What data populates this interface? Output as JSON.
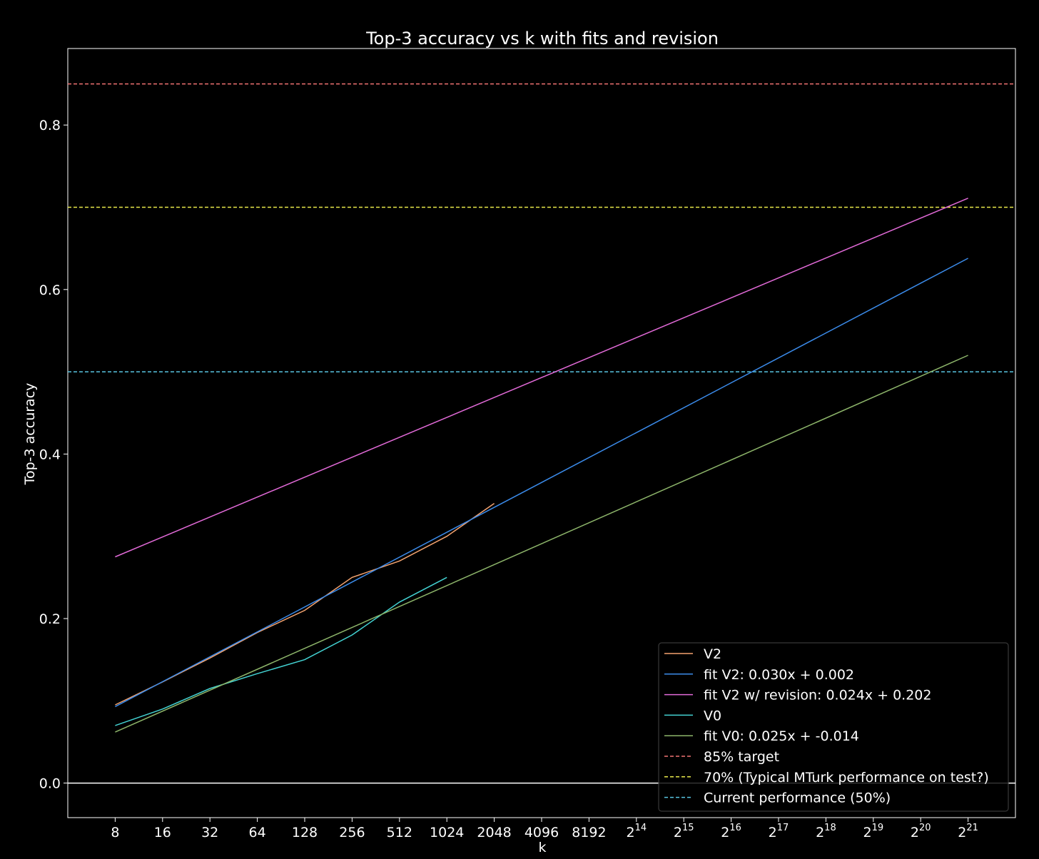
{
  "chart_data": {
    "type": "line",
    "title": "Top-3 accuracy vs k with fits and revision",
    "xlabel": "k",
    "ylabel": "Top-3 accuracy",
    "x_scale": "log2",
    "xlim": [
      4,
      4194304
    ],
    "ylim": [
      -0.042,
      0.893
    ],
    "x_ticks": [
      {
        "value": 8,
        "base": "8",
        "exp": ""
      },
      {
        "value": 16,
        "base": "16",
        "exp": ""
      },
      {
        "value": 32,
        "base": "32",
        "exp": ""
      },
      {
        "value": 64,
        "base": "64",
        "exp": ""
      },
      {
        "value": 128,
        "base": "128",
        "exp": ""
      },
      {
        "value": 256,
        "base": "256",
        "exp": ""
      },
      {
        "value": 512,
        "base": "512",
        "exp": ""
      },
      {
        "value": 1024,
        "base": "1024",
        "exp": ""
      },
      {
        "value": 2048,
        "base": "2048",
        "exp": ""
      },
      {
        "value": 4096,
        "base": "4096",
        "exp": ""
      },
      {
        "value": 8192,
        "base": "8192",
        "exp": ""
      },
      {
        "value": 16384,
        "base": "2",
        "exp": "14"
      },
      {
        "value": 32768,
        "base": "2",
        "exp": "15"
      },
      {
        "value": 65536,
        "base": "2",
        "exp": "16"
      },
      {
        "value": 131072,
        "base": "2",
        "exp": "17"
      },
      {
        "value": 262144,
        "base": "2",
        "exp": "18"
      },
      {
        "value": 524288,
        "base": "2",
        "exp": "19"
      },
      {
        "value": 1048576,
        "base": "2",
        "exp": "20"
      },
      {
        "value": 2097152,
        "base": "2",
        "exp": "21"
      }
    ],
    "y_ticks": [
      {
        "value": 0.0,
        "label": "0.0"
      },
      {
        "value": 0.2,
        "label": "0.2"
      },
      {
        "value": 0.4,
        "label": "0.4"
      },
      {
        "value": 0.6,
        "label": "0.6"
      },
      {
        "value": 0.8,
        "label": "0.8"
      }
    ],
    "zero_line": true,
    "grid": false,
    "legend_position": "lower-right",
    "series": [
      {
        "name": "V2",
        "color": "#f4a36f",
        "dash": false,
        "x": [
          8,
          16,
          32,
          64,
          128,
          256,
          512,
          1024,
          2048
        ],
        "y": [
          0.095,
          0.123,
          0.152,
          0.183,
          0.21,
          0.25,
          0.27,
          0.3,
          0.34
        ]
      },
      {
        "name": "fit V2: 0.030x + 0.002",
        "color": "#3b8bea",
        "dash": false,
        "x": [
          8,
          2097152
        ],
        "y": [
          0.093,
          0.638
        ]
      },
      {
        "name": "fit V2 w/ revision: 0.024x + 0.202",
        "color": "#e26ad8",
        "dash": false,
        "x": [
          8,
          2097152
        ],
        "y": [
          0.275,
          0.711
        ]
      },
      {
        "name": "V0",
        "color": "#43d2d2",
        "dash": false,
        "x": [
          8,
          16,
          32,
          64,
          128,
          256,
          512,
          1024
        ],
        "y": [
          0.07,
          0.09,
          0.115,
          0.133,
          0.15,
          0.18,
          0.22,
          0.25
        ]
      },
      {
        "name": "fit V0: 0.025x + -0.014",
        "color": "#8db56a",
        "dash": false,
        "x": [
          8,
          2097152
        ],
        "y": [
          0.062,
          0.52
        ]
      },
      {
        "name": "85% target",
        "color": "#f07272",
        "dash": true,
        "hline": 0.85
      },
      {
        "name": "70% (Typical MTurk performance on test?)",
        "color": "#e8e84a",
        "dash": true,
        "hline": 0.7
      },
      {
        "name": "Current performance (50%)",
        "color": "#58c4e0",
        "dash": true,
        "hline": 0.5
      }
    ]
  }
}
